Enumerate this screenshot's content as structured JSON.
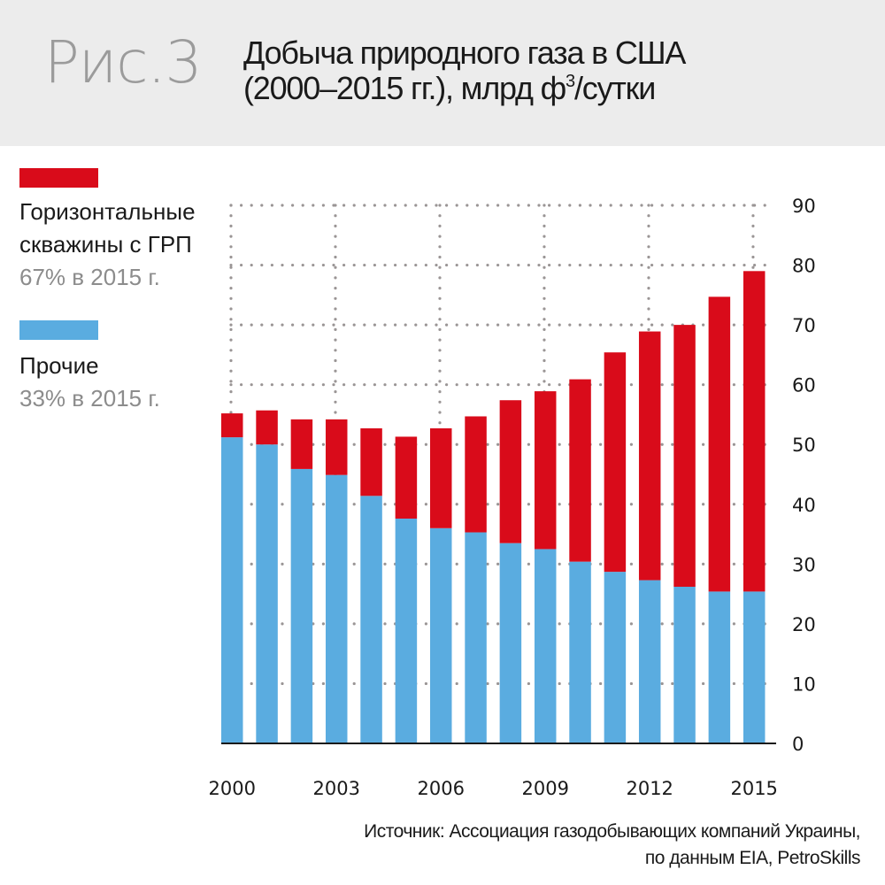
{
  "header": {
    "figure_label": "Рис.3",
    "title_line1": "Добыча природного газа в США",
    "title_line2_prefix": "(2000–2015 гг.), млрд ф",
    "title_line2_sup": "3",
    "title_line2_suffix": "/сутки"
  },
  "legend": [
    {
      "name_line1": "Горизонтальные",
      "name_line2": "скважины с ГРП",
      "share": "67% в 2015 г.",
      "color": "#d90b1a"
    },
    {
      "name_line1": "Прочие",
      "name_line2": "",
      "share": "33% в 2015 г.",
      "color": "#5aace0"
    }
  ],
  "source": {
    "line1": "Источник: Ассоциация газодобывающих компаний Украины,",
    "line2": "по данным EIA, PetroSkills"
  },
  "chart_data": {
    "type": "bar",
    "stacked": true,
    "title": "Добыча природного газа в США (2000–2015 гг.), млрд ф³/сутки",
    "xlabel": "",
    "ylabel": "",
    "categories": [
      "2000",
      "2001",
      "2002",
      "2003",
      "2004",
      "2005",
      "2006",
      "2007",
      "2008",
      "2009",
      "2010",
      "2011",
      "2012",
      "2013",
      "2014",
      "2015"
    ],
    "x_tick_labels": [
      "2000",
      "2003",
      "2006",
      "2009",
      "2012",
      "2015"
    ],
    "y_ticks": [
      0,
      10,
      20,
      30,
      40,
      50,
      60,
      70,
      80,
      90
    ],
    "ylim": [
      0,
      90
    ],
    "y_axis_side": "right",
    "grid": "dotted",
    "legend_position": "left",
    "series": [
      {
        "name": "Прочие",
        "color": "#5aace0",
        "values": [
          51.2,
          50.0,
          45.9,
          44.9,
          41.4,
          37.6,
          36.0,
          35.3,
          33.5,
          32.5,
          30.4,
          28.7,
          27.3,
          26.2,
          25.4,
          25.4
        ]
      },
      {
        "name": "Горизонтальные скважины с ГРП",
        "color": "#d90b1a",
        "values": [
          4.0,
          5.7,
          8.3,
          9.3,
          11.3,
          13.7,
          16.7,
          19.4,
          23.9,
          26.4,
          30.5,
          36.7,
          41.6,
          43.8,
          49.3,
          53.6
        ]
      }
    ],
    "totals": [
      55.2,
      55.7,
      54.2,
      54.2,
      52.7,
      51.3,
      52.7,
      54.7,
      57.4,
      58.9,
      60.9,
      65.4,
      68.9,
      70.0,
      74.7,
      79.0
    ]
  }
}
